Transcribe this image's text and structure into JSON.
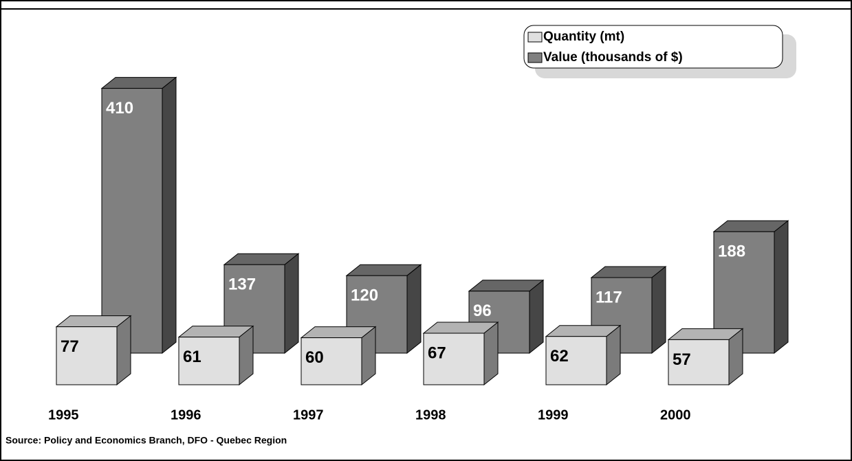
{
  "chart_data": {
    "type": "bar3d",
    "categories": [
      "1995",
      "1996",
      "1997",
      "1998",
      "1999",
      "2000"
    ],
    "series": [
      {
        "name": "Quantity (mt)",
        "color": "#e0e0e0",
        "values": [
          77,
          61,
          60,
          67,
          62,
          57
        ]
      },
      {
        "name": "Value (thousands of $)",
        "color": "#808080",
        "values": [
          410,
          137,
          120,
          96,
          117,
          188
        ]
      }
    ],
    "source": "Source:  Policy and Economics Branch, DFO - Quebec Region"
  }
}
